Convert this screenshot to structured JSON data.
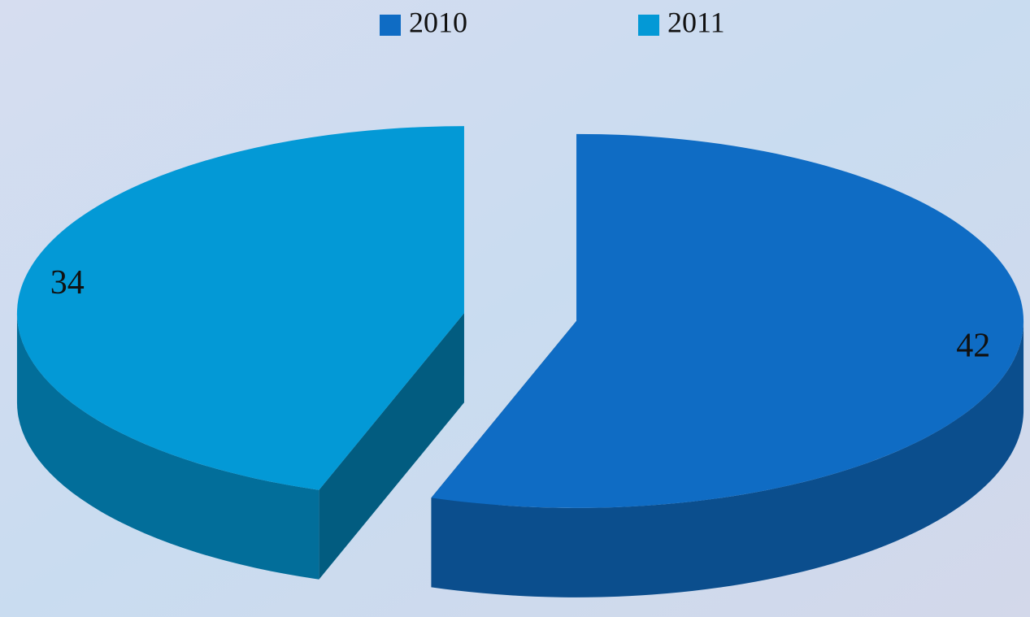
{
  "chart_data": {
    "type": "pie3d",
    "categories": [
      "2010",
      "2011"
    ],
    "values": [
      42,
      34
    ],
    "colors": [
      "#0f6cc4",
      "#0399d6"
    ],
    "legend": "top"
  }
}
